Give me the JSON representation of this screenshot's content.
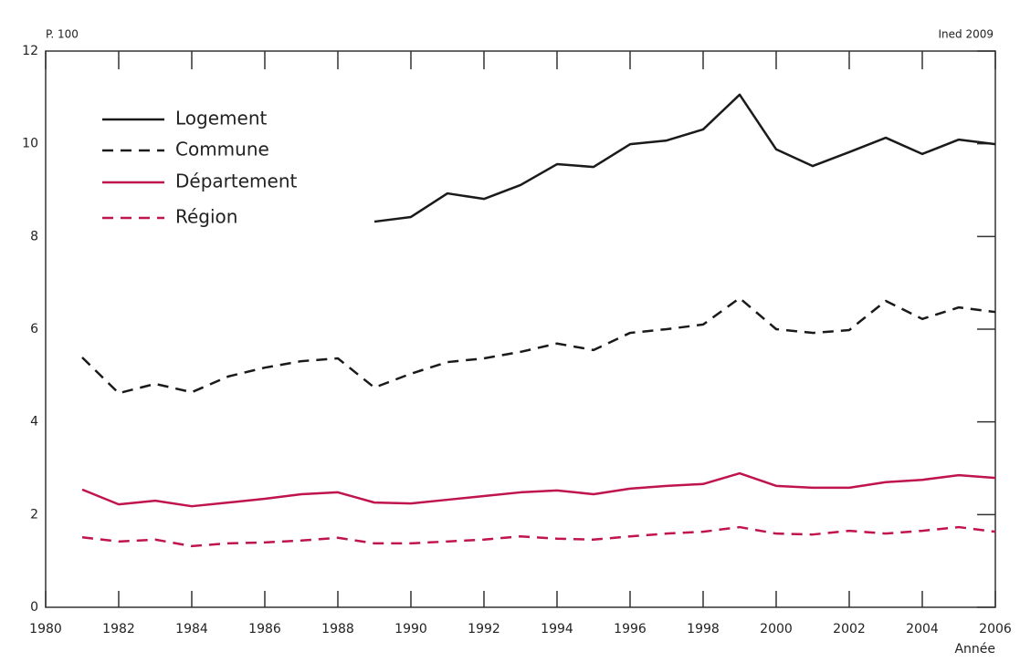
{
  "chart_data": {
    "type": "line",
    "y_label": "P. 100",
    "x_label": "Année",
    "annotation": "Ined 2009",
    "x": [
      1981,
      1982,
      1983,
      1984,
      1985,
      1986,
      1987,
      1988,
      1989,
      1990,
      1991,
      1992,
      1993,
      1994,
      1995,
      1996,
      1997,
      1998,
      1999,
      2000,
      2001,
      2002,
      2003,
      2004,
      2005,
      2006
    ],
    "series": [
      {
        "name": "Logement",
        "color": "#1a1a1a",
        "dash": false,
        "values": [
          null,
          null,
          null,
          null,
          null,
          null,
          null,
          null,
          8.32,
          8.42,
          8.93,
          8.81,
          9.11,
          9.56,
          9.5,
          9.99,
          10.07,
          10.31,
          11.06,
          9.88,
          9.52,
          9.82,
          10.13,
          9.78,
          10.09,
          9.99
        ]
      },
      {
        "name": "Commune",
        "color": "#1a1a1a",
        "dash": true,
        "values": [
          5.39,
          4.62,
          4.82,
          4.64,
          4.98,
          5.17,
          5.31,
          5.37,
          4.74,
          5.04,
          5.29,
          5.37,
          5.51,
          5.69,
          5.55,
          5.92,
          6.0,
          6.1,
          6.67,
          6.0,
          5.92,
          5.98,
          6.61,
          6.22,
          6.47,
          6.37
        ]
      },
      {
        "name": "Département",
        "color": "#c0144c",
        "dash": false,
        "values": [
          2.54,
          2.22,
          2.3,
          2.18,
          2.26,
          2.34,
          2.44,
          2.48,
          2.26,
          2.24,
          2.32,
          2.4,
          2.48,
          2.52,
          2.44,
          2.56,
          2.62,
          2.66,
          2.89,
          2.62,
          2.58,
          2.58,
          2.7,
          2.75,
          2.85,
          2.79
        ]
      },
      {
        "name": "Région",
        "color": "#c0144c",
        "dash": true,
        "values": [
          1.51,
          1.42,
          1.46,
          1.32,
          1.38,
          1.4,
          1.44,
          1.5,
          1.38,
          1.38,
          1.42,
          1.46,
          1.53,
          1.48,
          1.46,
          1.53,
          1.59,
          1.63,
          1.73,
          1.59,
          1.57,
          1.65,
          1.59,
          1.65,
          1.73,
          1.63
        ]
      }
    ],
    "xlim": [
      1980,
      2006
    ],
    "xticks": [
      1980,
      1982,
      1984,
      1986,
      1988,
      1990,
      1992,
      1994,
      1996,
      1998,
      2000,
      2002,
      2004,
      2006
    ],
    "ylim": [
      0,
      12
    ],
    "yticks": [
      0,
      2,
      4,
      6,
      8,
      10,
      12
    ],
    "legend": "upper left"
  }
}
